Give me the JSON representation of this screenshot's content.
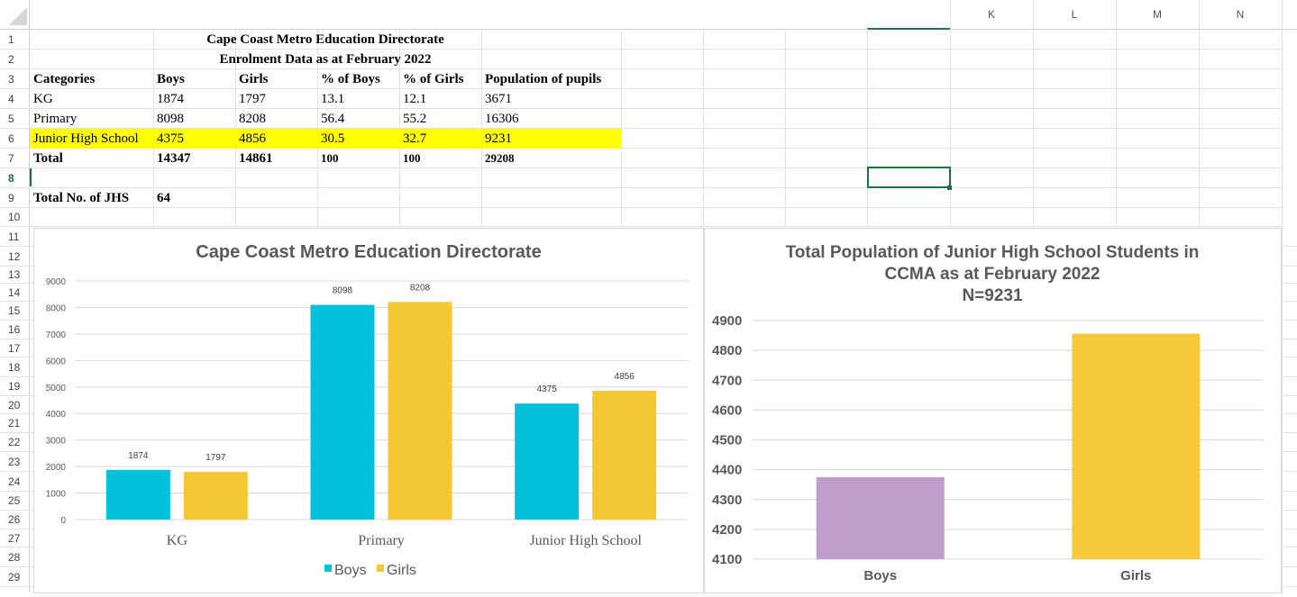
{
  "column_headers": [
    "K",
    "L",
    "M",
    "N"
  ],
  "row_headers": [
    "1",
    "2",
    "3",
    "4",
    "5",
    "6",
    "7",
    "8",
    "9",
    "10",
    "11",
    "12",
    "13",
    "14",
    "15",
    "16",
    "17",
    "18",
    "19",
    "20",
    "21",
    "22",
    "23",
    "24",
    "25",
    "26",
    "27",
    "28",
    "29"
  ],
  "active_row": "8",
  "table": {
    "title_line1": "Cape Coast Metro Education Directorate",
    "title_line2": "Enrolment Data as at February 2022",
    "headers": [
      "Categories",
      "Boys",
      "Girls",
      "% of Boys",
      "% of Girls",
      "Population of pupils"
    ],
    "rows": [
      [
        "KG",
        "1874",
        "1797",
        "13.1",
        "12.1",
        "3671"
      ],
      [
        "Primary",
        "8098",
        "8208",
        "56.4",
        "55.2",
        "16306"
      ],
      [
        "Junior High School",
        "4375",
        "4856",
        "30.5",
        "32.7",
        "9231"
      ]
    ],
    "total_row": [
      "Total",
      "14347",
      "14861",
      "100",
      "100",
      "29208"
    ],
    "highlight_color": "#ffff00",
    "jhs_label": "Total No. of JHS",
    "jhs_value": "64"
  },
  "chart_data": [
    {
      "type": "bar",
      "title": "Cape Coast Metro Education Directorate",
      "categories": [
        "KG",
        "Primary",
        "Junior High School"
      ],
      "series": [
        {
          "name": "Boys",
          "values": [
            1874,
            8098,
            4375
          ],
          "color": "#00c0da"
        },
        {
          "name": "Girls",
          "values": [
            1797,
            8208,
            4856
          ],
          "color": "#f5c733"
        }
      ],
      "ylim": [
        0,
        9000
      ],
      "yticks": [
        "0",
        "1000",
        "2000",
        "3000",
        "4000",
        "5000",
        "6000",
        "7000",
        "8000",
        "9000"
      ],
      "grid": true,
      "legend": "bottom"
    },
    {
      "type": "bar",
      "title": "Total Population of Junior High School Students in CCMA as at February 2022 N=9231",
      "title_lines": [
        "Total Population of Junior High School Students in",
        "CCMA as at February 2022",
        "N=9231"
      ],
      "categories": [
        "Boys",
        "Girls"
      ],
      "values": [
        4375,
        4856
      ],
      "colors": [
        "#c09ccb",
        "#f4c93c"
      ],
      "ylim": [
        4100,
        4900
      ],
      "yticks": [
        "4100",
        "4200",
        "4300",
        "4400",
        "4500",
        "4600",
        "4700",
        "4800",
        "4900"
      ],
      "grid": true
    }
  ]
}
